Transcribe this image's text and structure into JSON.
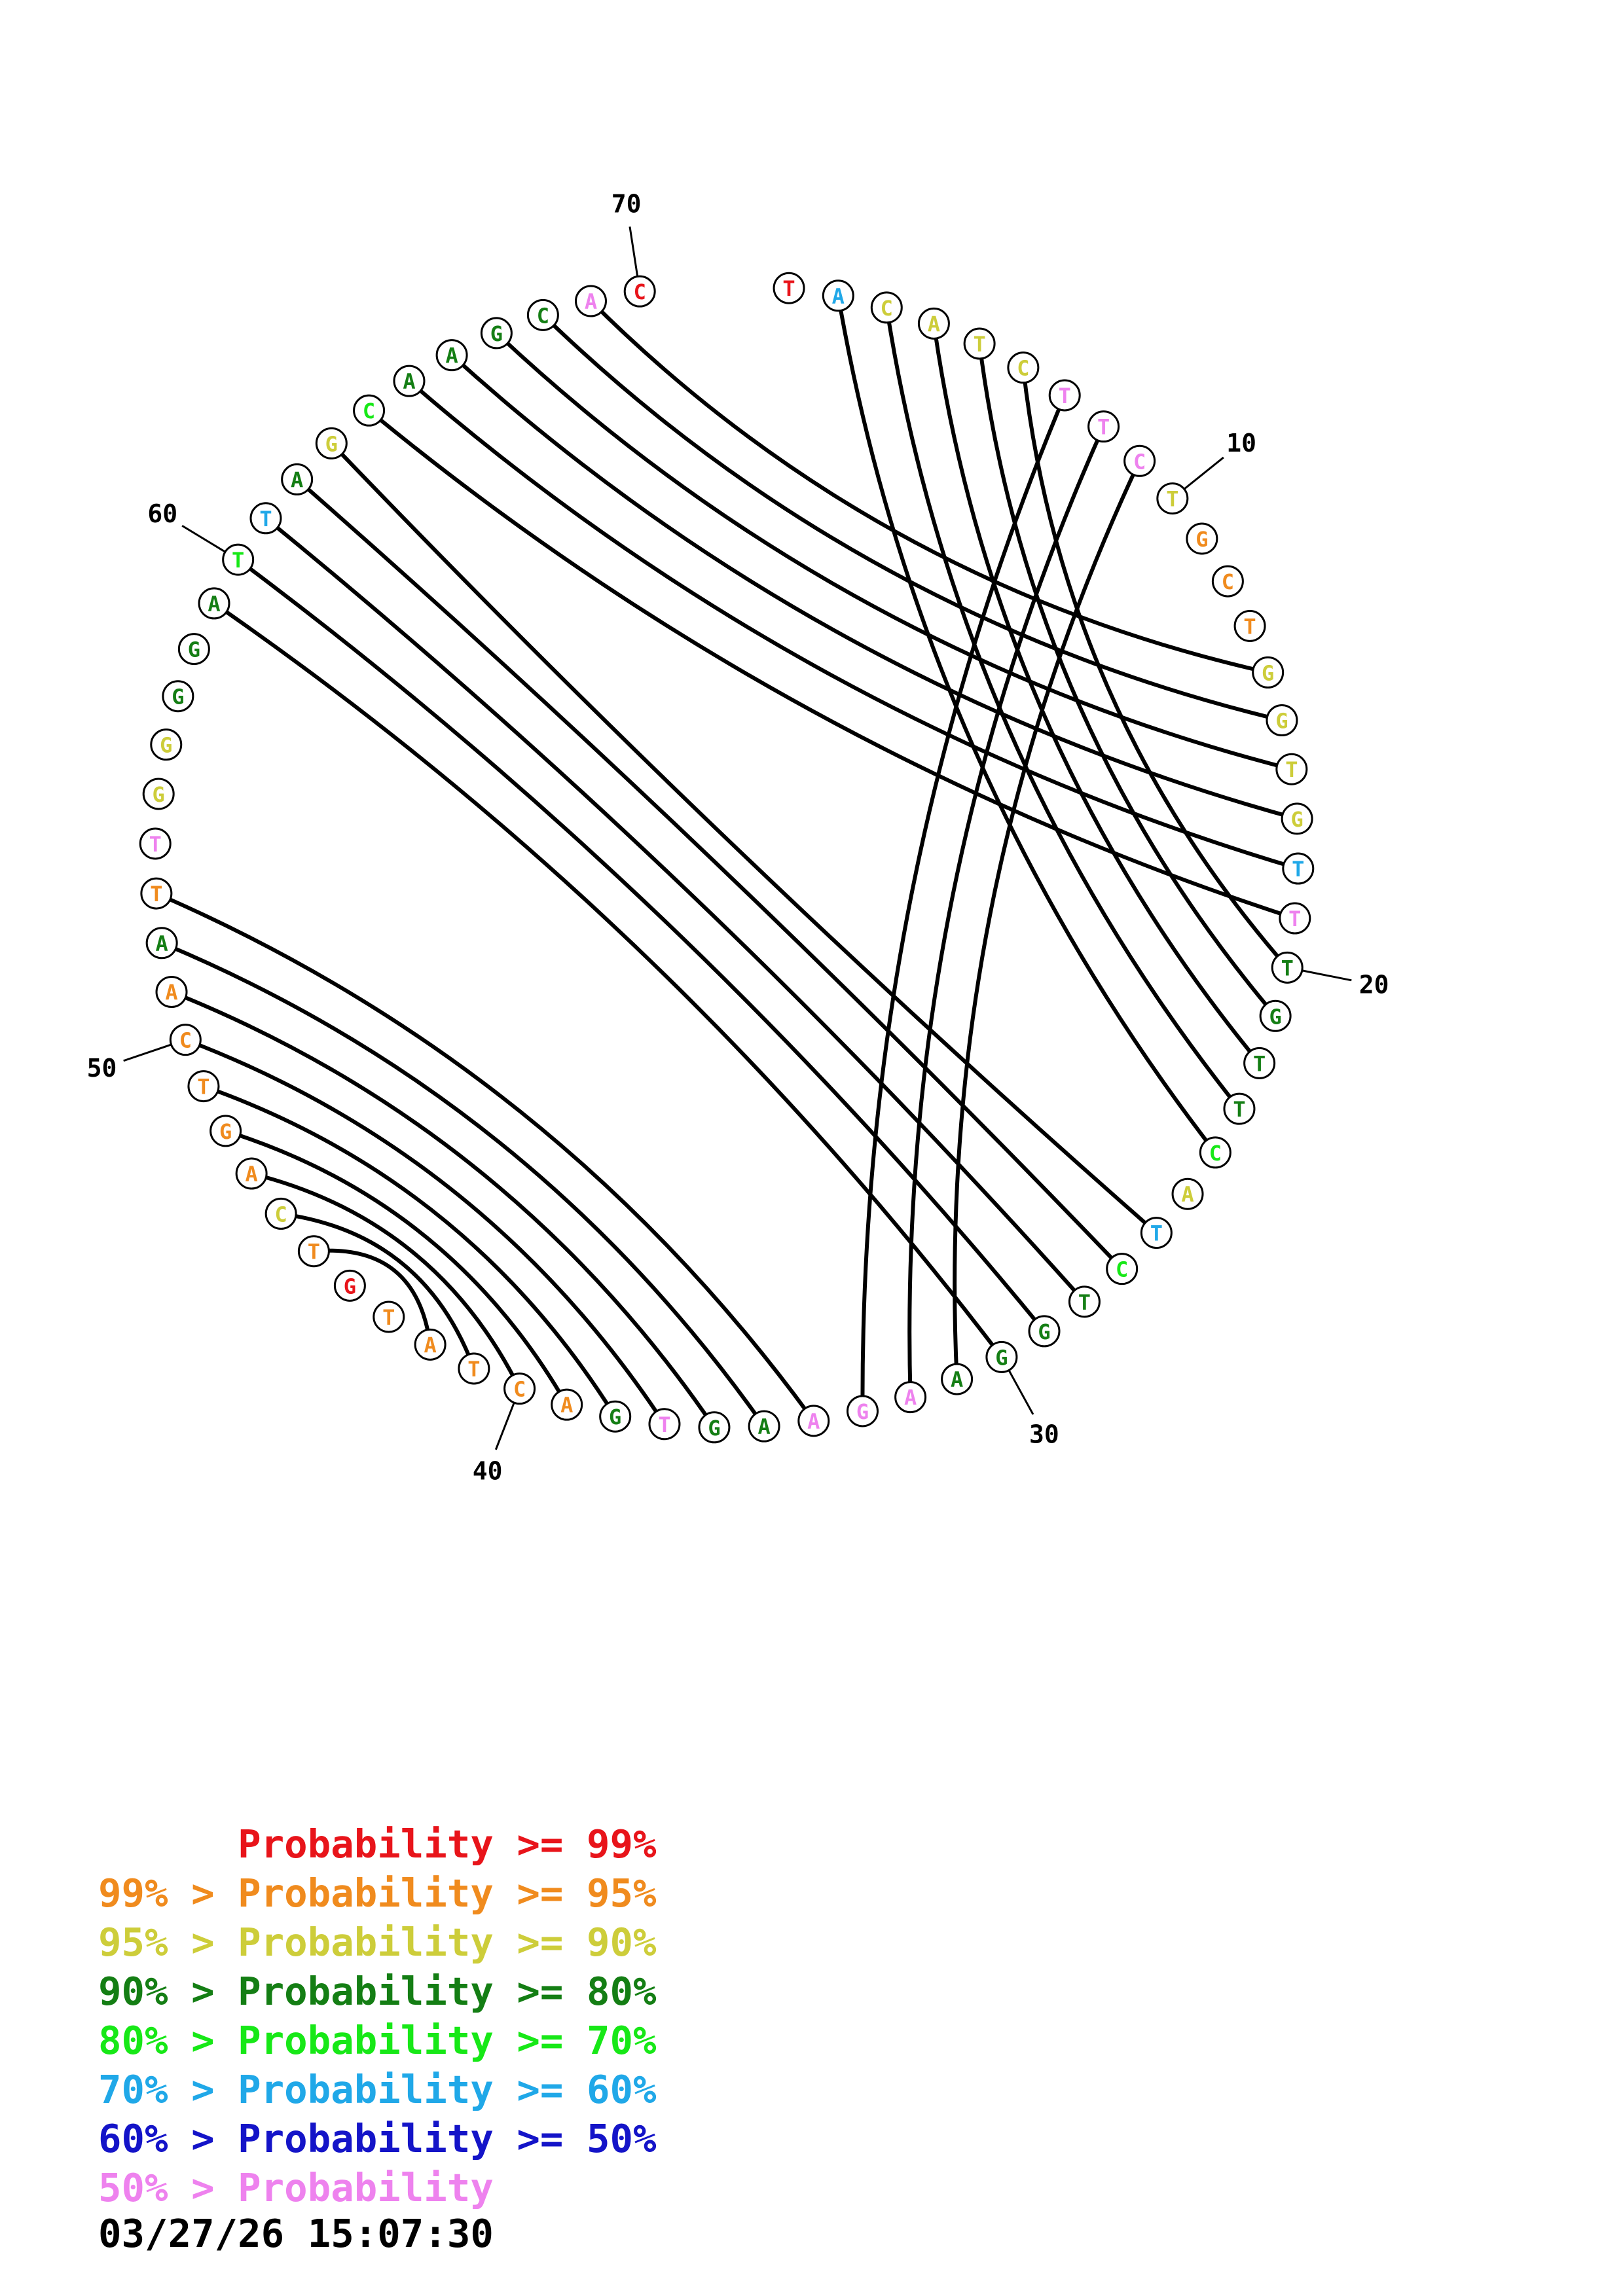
{
  "sequence": "TACATCTTCTGCTGGTGTTTGTTCATCTGGAAGAAGTGACTATGTCAGTCAATTGGGGATTAGCAAGCAC",
  "probability_class": [
    "red",
    "sky",
    "yellow",
    "yellow",
    "yellow",
    "yellow",
    "pink",
    "pink",
    "pink",
    "yellow",
    "orange",
    "orange",
    "orange",
    "yellow",
    "yellow",
    "yellow",
    "yellow",
    "sky",
    "pink",
    "dkgreen",
    "dkgreen",
    "dkgreen",
    "dkgreen",
    "green",
    "yellow",
    "sky",
    "green",
    "dkgreen",
    "dkgreen",
    "dkgreen",
    "dkgreen",
    "pink",
    "pink",
    "pink",
    "dkgreen",
    "dkgreen",
    "pink",
    "dkgreen",
    "orange",
    "orange",
    "orange",
    "orange",
    "orange",
    "red",
    "orange",
    "yellow",
    "orange",
    "orange",
    "orange",
    "orange",
    "orange",
    "dkgreen",
    "orange",
    "pink",
    "yellow",
    "yellow",
    "dkgreen",
    "dkgreen",
    "dkgreen",
    "green",
    "sky",
    "dkgreen",
    "yellow",
    "green",
    "dkgreen",
    "dkgreen",
    "dkgreen",
    "dkgreen",
    "pink",
    "red"
  ],
  "pairs": [
    [
      2,
      24
    ],
    [
      3,
      23
    ],
    [
      4,
      22
    ],
    [
      5,
      21
    ],
    [
      6,
      20
    ],
    [
      7,
      33
    ],
    [
      8,
      32
    ],
    [
      9,
      31
    ],
    [
      14,
      69
    ],
    [
      15,
      68
    ],
    [
      16,
      67
    ],
    [
      17,
      66
    ],
    [
      18,
      65
    ],
    [
      19,
      64
    ],
    [
      26,
      63
    ],
    [
      27,
      62
    ],
    [
      28,
      61
    ],
    [
      29,
      60
    ],
    [
      30,
      59
    ],
    [
      34,
      53
    ],
    [
      35,
      52
    ],
    [
      36,
      51
    ],
    [
      37,
      50
    ],
    [
      38,
      49
    ],
    [
      39,
      48
    ],
    [
      40,
      47
    ],
    [
      41,
      46
    ],
    [
      42,
      45
    ]
  ],
  "tick_labels": [
    {
      "index": 10,
      "label": "10"
    },
    {
      "index": 20,
      "label": "20"
    },
    {
      "index": 30,
      "label": "30"
    },
    {
      "index": 40,
      "label": "40"
    },
    {
      "index": 50,
      "label": "50"
    },
    {
      "index": 60,
      "label": "60"
    },
    {
      "index": 70,
      "label": "70"
    }
  ],
  "colors": {
    "red": "#e8141a",
    "orange": "#f08b1e",
    "yellow": "#cdcd3a",
    "dkgreen": "#147e14",
    "green": "#17e817",
    "sky": "#20a8e8",
    "blue": "#1414c8",
    "pink": "#ee82ee"
  },
  "legend": [
    {
      "class": "red",
      "prefix": "",
      "text": "Probability >= 99%"
    },
    {
      "class": "orange",
      "prefix": "99% > ",
      "text": "Probability >= 95%"
    },
    {
      "class": "yellow",
      "prefix": "95% > ",
      "text": "Probability >= 90%"
    },
    {
      "class": "dkgreen",
      "prefix": "90% > ",
      "text": "Probability >= 80%"
    },
    {
      "class": "green",
      "prefix": "80% > ",
      "text": "Probability >= 70%"
    },
    {
      "class": "sky",
      "prefix": "70% > ",
      "text": "Probability >= 60%"
    },
    {
      "class": "blue",
      "prefix": "60% > ",
      "text": "Probability >= 50%"
    },
    {
      "class": "pink",
      "prefix": "50% > ",
      "text": "Probability"
    }
  ],
  "timestamp": "03/27/26 15:07:30"
}
